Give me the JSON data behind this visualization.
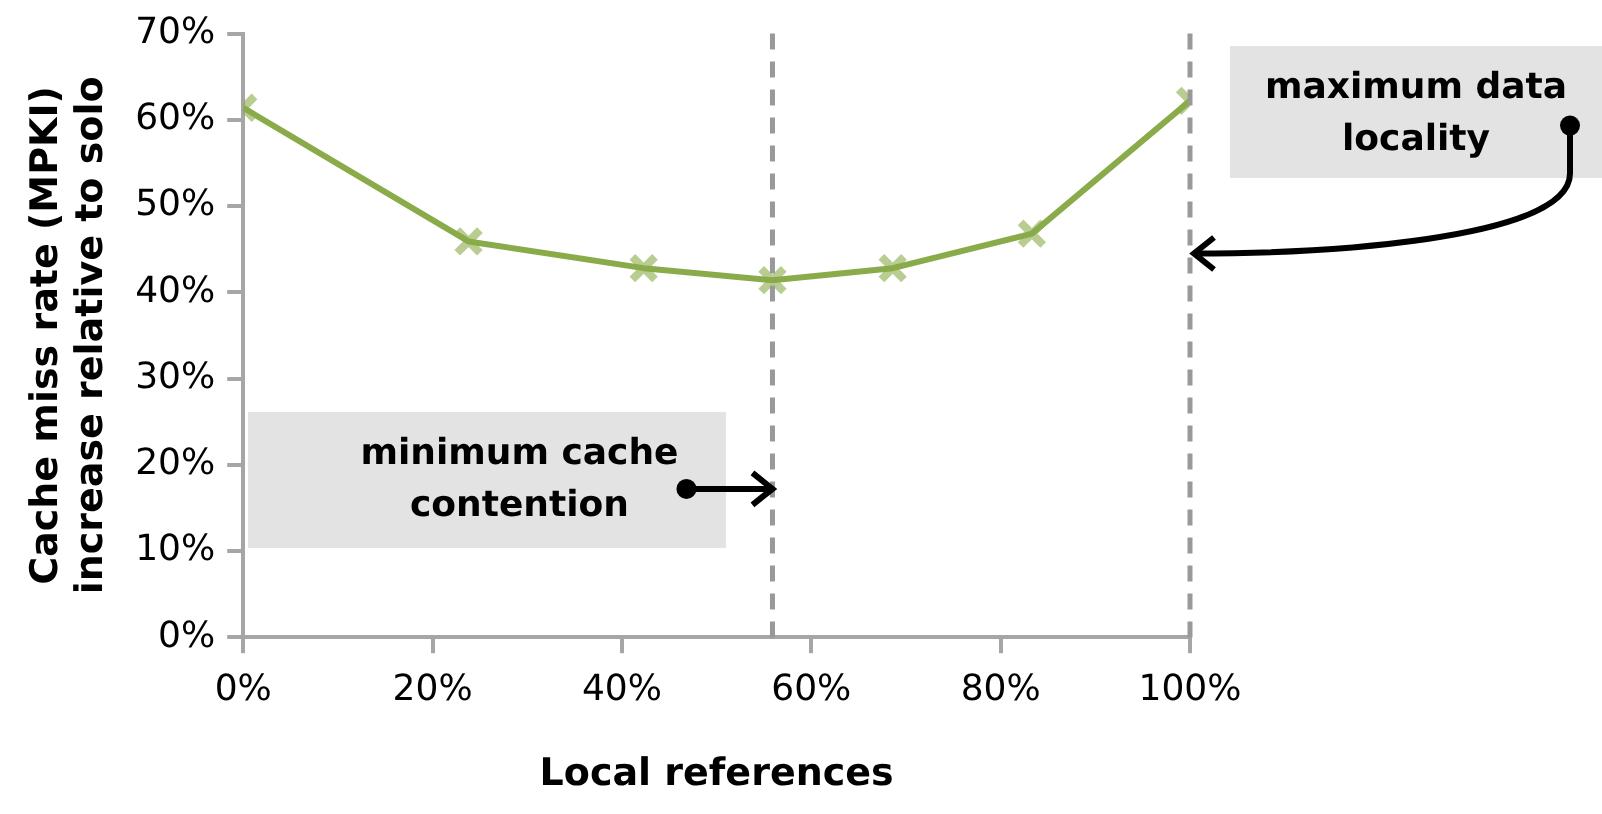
{
  "chart_data": {
    "type": "line",
    "xlabel": "Local references",
    "ylabel": "Cache miss rate (MPKI) increase relative to solo",
    "x": [
      0,
      23.8,
      42.3,
      55.9,
      68.6,
      83.3,
      100
    ],
    "series": [
      {
        "color": "#8aab4a",
        "values": [
          61.4,
          45.9,
          42.8,
          41.4,
          42.8,
          46.8,
          62.2
        ]
      }
    ],
    "xlim": [
      0,
      100
    ],
    "xticks": [
      {
        "value": 0,
        "label": "0%"
      },
      {
        "value": 20,
        "label": "20%"
      },
      {
        "value": 40,
        "label": "40%"
      },
      {
        "value": 60,
        "label": "60%"
      },
      {
        "value": 80,
        "label": "80%"
      },
      {
        "value": 100,
        "label": "100%"
      }
    ],
    "ylim": [
      0,
      70
    ],
    "yticks": [
      {
        "value": 0,
        "label": "0%"
      },
      {
        "value": 10,
        "label": "10%"
      },
      {
        "value": 20,
        "label": "20%"
      },
      {
        "value": 30,
        "label": "30%"
      },
      {
        "value": 40,
        "label": "40%"
      },
      {
        "value": 50,
        "label": "50%"
      },
      {
        "value": 60,
        "label": "60%"
      },
      {
        "value": 70,
        "label": "70%"
      }
    ],
    "ref_lines": [
      {
        "axis": "x",
        "value": 55.9,
        "color": "#999999",
        "line_style": "dashed"
      },
      {
        "axis": "x",
        "value": 100,
        "color": "#999999",
        "line_style": "dashed"
      }
    ],
    "annotations": [
      {
        "text": "minimum cache contention",
        "x": 55.9,
        "y": 17.2
      },
      {
        "text": "maximum data locality",
        "x": 100,
        "y": 44.5
      }
    ],
    "grid": false,
    "legend": false,
    "marker": "cross",
    "line_style": "solid"
  }
}
